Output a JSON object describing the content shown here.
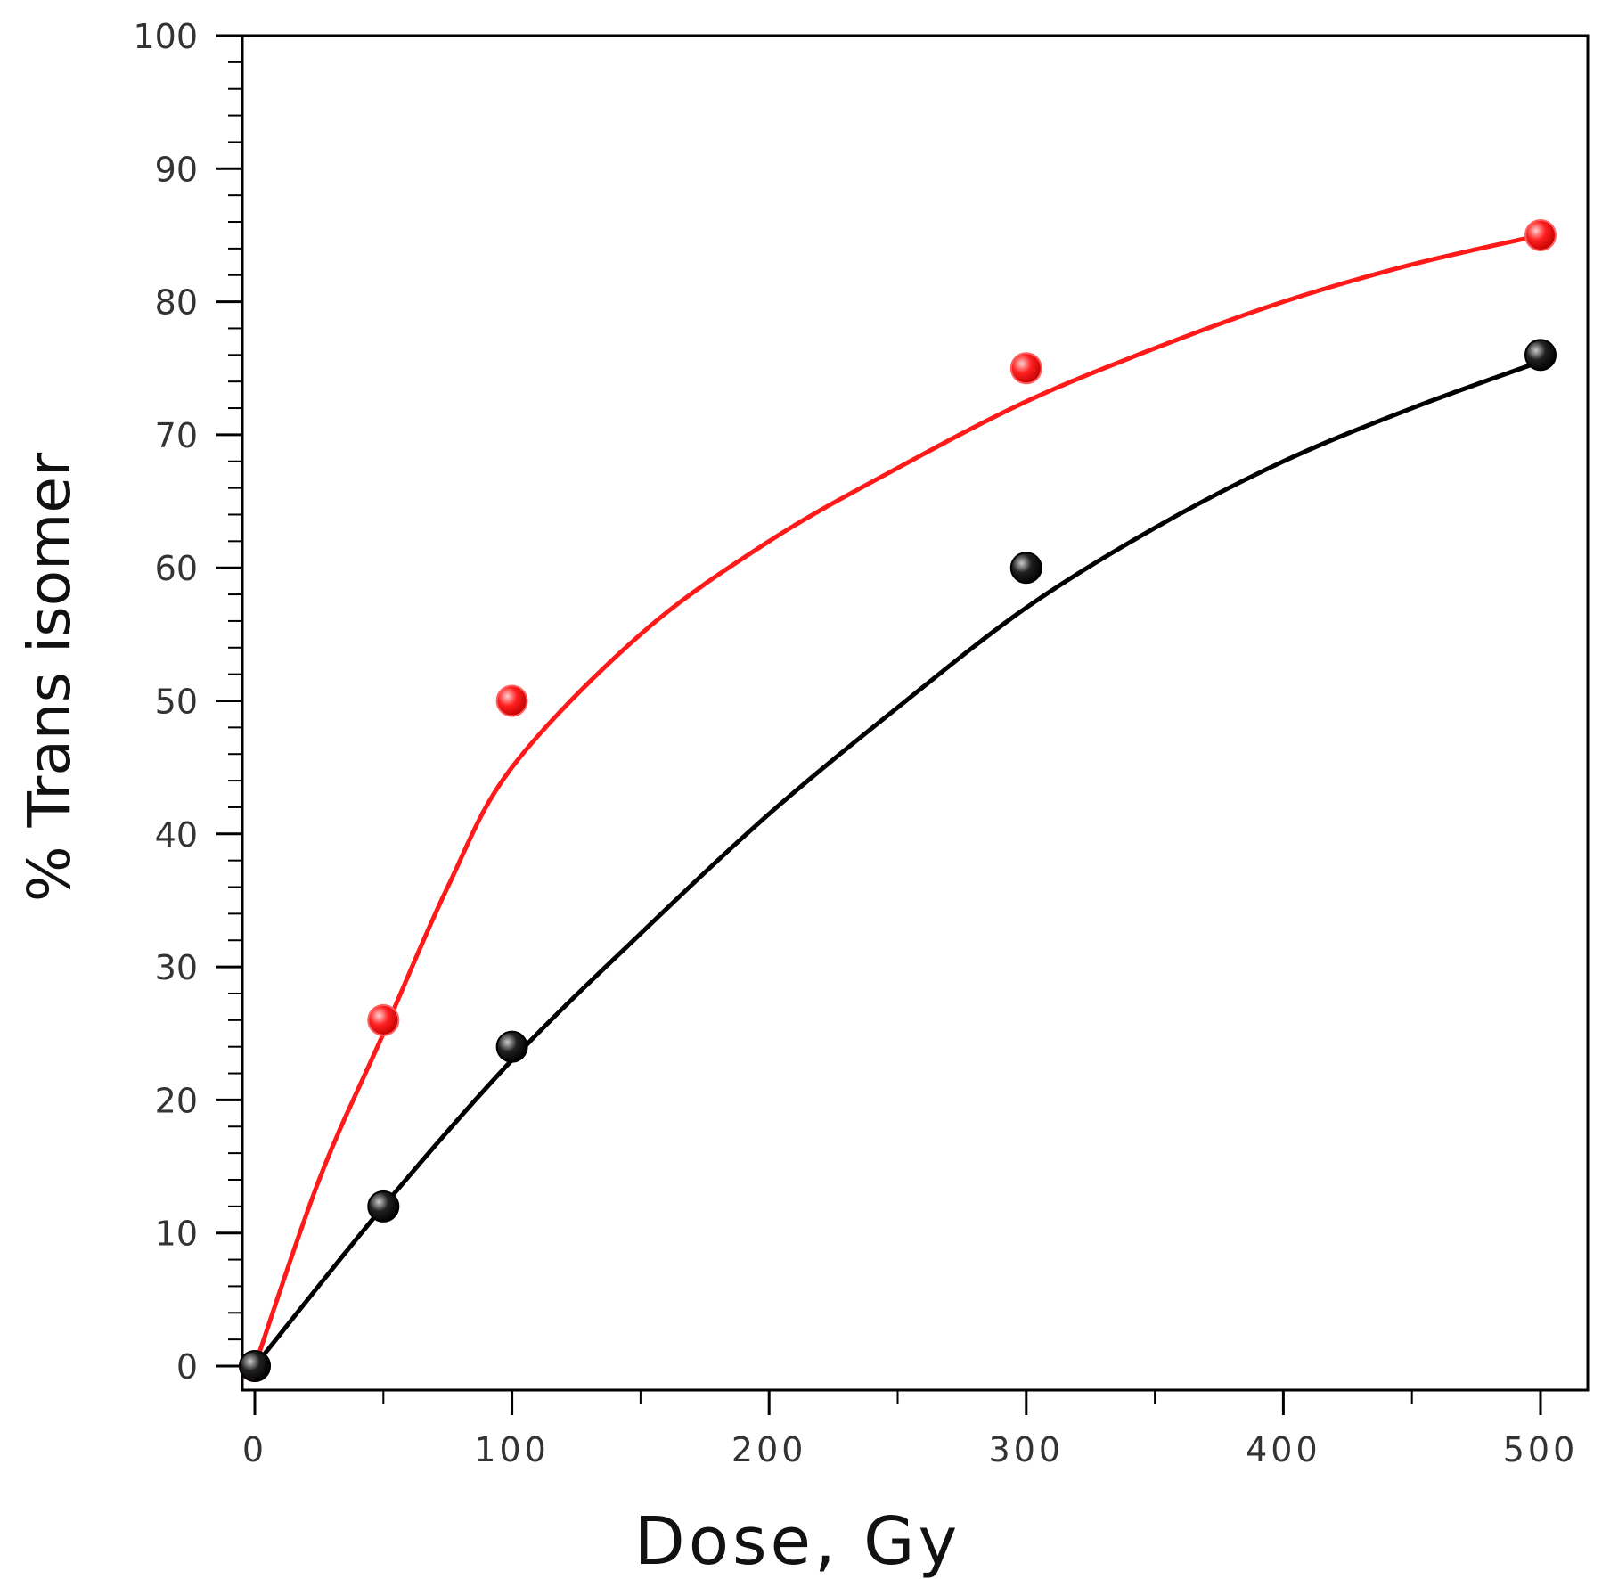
{
  "chart_data": {
    "type": "scatter",
    "title": "",
    "xlabel": "Dose, Gy",
    "ylabel": "% Trans isomer",
    "xlim": [
      -5,
      520
    ],
    "ylim": [
      -1,
      100
    ],
    "xticks": [
      0,
      100,
      200,
      300,
      400,
      500
    ],
    "xtick_labels": [
      "0",
      "100",
      "200",
      "300",
      "400",
      "500"
    ],
    "yticks": [
      0,
      10,
      20,
      30,
      40,
      50,
      60,
      70,
      80,
      90,
      100
    ],
    "ytick_labels": [
      "0",
      "10",
      "20",
      "30",
      "40",
      "50",
      "60",
      "70",
      "80",
      "90",
      "100"
    ],
    "grid": false,
    "legend": "none",
    "series": [
      {
        "color": "#ff1a1a",
        "points": [
          [
            0,
            0
          ],
          [
            50,
            26
          ],
          [
            100,
            50
          ],
          [
            300,
            75
          ],
          [
            500,
            85
          ]
        ],
        "fit_curve": [
          [
            0,
            0
          ],
          [
            25,
            14
          ],
          [
            50,
            25
          ],
          [
            75,
            36
          ],
          [
            100,
            45
          ],
          [
            150,
            55
          ],
          [
            200,
            62
          ],
          [
            250,
            67.5
          ],
          [
            300,
            72.5
          ],
          [
            350,
            76.5
          ],
          [
            400,
            80
          ],
          [
            450,
            82.8
          ],
          [
            500,
            85
          ]
        ]
      },
      {
        "color": "#000000",
        "points": [
          [
            0,
            0
          ],
          [
            50,
            12
          ],
          [
            100,
            24
          ],
          [
            300,
            60
          ],
          [
            500,
            76
          ]
        ],
        "fit_curve": [
          [
            0,
            0
          ],
          [
            50,
            12
          ],
          [
            100,
            23
          ],
          [
            150,
            32.5
          ],
          [
            200,
            41.5
          ],
          [
            250,
            49.5
          ],
          [
            300,
            57
          ],
          [
            350,
            63
          ],
          [
            400,
            68
          ],
          [
            450,
            72
          ],
          [
            500,
            75.5
          ]
        ]
      }
    ]
  }
}
